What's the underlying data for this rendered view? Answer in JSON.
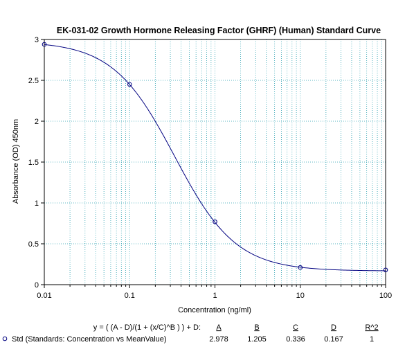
{
  "chart_data": {
    "type": "line",
    "title": "EK-031-02 Growth Hormone Releasing Factor (GHRF) (Human) Standard Curve",
    "xlabel": "Concentration (ng/ml)",
    "ylabel": "Absorbance (OD) 450nm",
    "x_scale": "log",
    "xlim": [
      0.01,
      100
    ],
    "ylim": [
      0,
      3
    ],
    "x_ticks": [
      "0.01",
      "0.1",
      "1",
      "10",
      "100"
    ],
    "y_ticks": [
      "0",
      "0.5",
      "1",
      "1.5",
      "2",
      "2.5",
      "3"
    ],
    "grid": true,
    "colors": {
      "curve": "#000080",
      "grid": "#2aa0b0",
      "points": "#000080"
    },
    "series": [
      {
        "name": "Std (Standards: Concentration vs MeanValue)",
        "points": [
          {
            "x": 0.01,
            "y": 2.94
          },
          {
            "x": 0.1,
            "y": 2.45
          },
          {
            "x": 1,
            "y": 0.77
          },
          {
            "x": 10,
            "y": 0.21
          },
          {
            "x": 100,
            "y": 0.18
          }
        ]
      }
    ],
    "fit": {
      "equation": "y = ( (A - D)/(1 + (x/C)^B ) ) + D:",
      "headers": [
        "A",
        "B",
        "C",
        "D",
        "R^2"
      ],
      "values": [
        "2.978",
        "1.205",
        "0.336",
        "0.167",
        "1"
      ],
      "A": 2.978,
      "B": 1.205,
      "C": 0.336,
      "D": 0.167
    }
  }
}
